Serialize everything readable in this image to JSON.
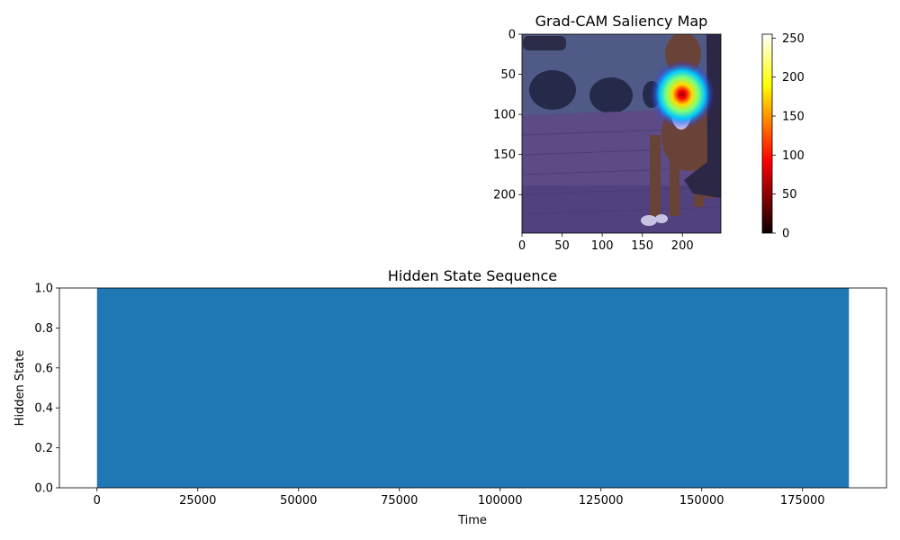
{
  "chart_data": [
    {
      "type": "heatmap",
      "title": "Grad-CAM Saliency Map",
      "xlim": [
        0,
        248
      ],
      "ylim": [
        248,
        0
      ],
      "x_ticks": [
        0,
        50,
        100,
        150,
        200
      ],
      "y_ticks": [
        0,
        50,
        100,
        150,
        200
      ],
      "colorbar": {
        "colormap": "hot",
        "range": [
          0,
          255
        ],
        "ticks": [
          0,
          50,
          100,
          150,
          200,
          250
        ]
      },
      "image_description": "boxer dog standing on brick patio, overlaid with blue-tinted jet heatmap",
      "hotspot": {
        "x": 200,
        "y": 75,
        "value": 255
      }
    },
    {
      "type": "area",
      "title": "Hidden State Sequence",
      "xlabel": "Time",
      "ylabel": "Hidden State",
      "x": [
        0,
        186500
      ],
      "values": [
        1,
        1
      ],
      "color": "#1f77b4",
      "xlim": [
        -9325,
        195825
      ],
      "ylim": [
        0,
        1
      ],
      "x_ticks": [
        0,
        25000,
        50000,
        75000,
        100000,
        125000,
        150000,
        175000
      ],
      "y_ticks": [
        0.0,
        0.2,
        0.4,
        0.6,
        0.8,
        1.0
      ],
      "y_tick_labels": [
        "0.0",
        "0.2",
        "0.4",
        "0.6",
        "0.8",
        "1.0"
      ]
    }
  ]
}
